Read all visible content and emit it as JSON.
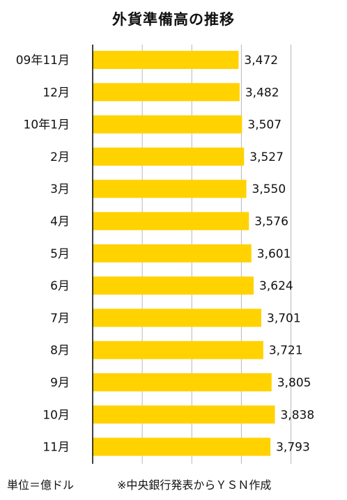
{
  "chart_data": {
    "type": "bar",
    "orientation": "horizontal",
    "title": "外貨準備高の推移",
    "categories": [
      "09年11月",
      "12月",
      "10年1月",
      "2月",
      "3月",
      "4月",
      "5月",
      "6月",
      "7月",
      "8月",
      "9月",
      "10月",
      "11月"
    ],
    "values": [
      3472,
      3482,
      3507,
      3527,
      3550,
      3576,
      3601,
      3624,
      3701,
      3721,
      3805,
      3838,
      3793
    ],
    "value_labels": [
      "3,472",
      "3,482",
      "3,507",
      "3,527",
      "3,550",
      "3,576",
      "3,601",
      "3,624",
      "3,701",
      "3,721",
      "3,805",
      "3,838",
      "3,793"
    ],
    "xlim": [
      2000,
      4200
    ],
    "grid": true,
    "bar_color": "#FFD200"
  },
  "footer": {
    "unit": "単位＝億ドル",
    "source": "※中央銀行発表からＹＳＮ作成"
  }
}
